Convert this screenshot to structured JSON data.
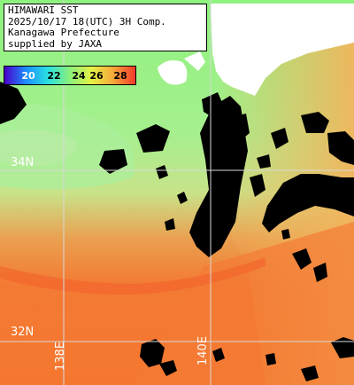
{
  "title": {
    "line1": "HIMAWARI SST",
    "line2": "2025/10/17 18(UTC) 3H Comp.",
    "line3": "Kanagawa Prefecture",
    "line4": "supplied by JAXA"
  },
  "legend": {
    "ticks": [
      "20",
      "22",
      "24",
      "26",
      "28"
    ],
    "colors": [
      "#4a00c8",
      "#1b8fff",
      "#29e0e0",
      "#8bf07a",
      "#e6f044",
      "#f7a63a",
      "#f23a2a"
    ]
  },
  "grid": {
    "lat_labels": [
      "34N",
      "32N"
    ],
    "lon_labels": [
      "138E",
      "140E"
    ]
  },
  "map_colors": {
    "land": "#ffffff",
    "cloud_mask": "#000000",
    "grid_line": "#d0d0d0"
  }
}
